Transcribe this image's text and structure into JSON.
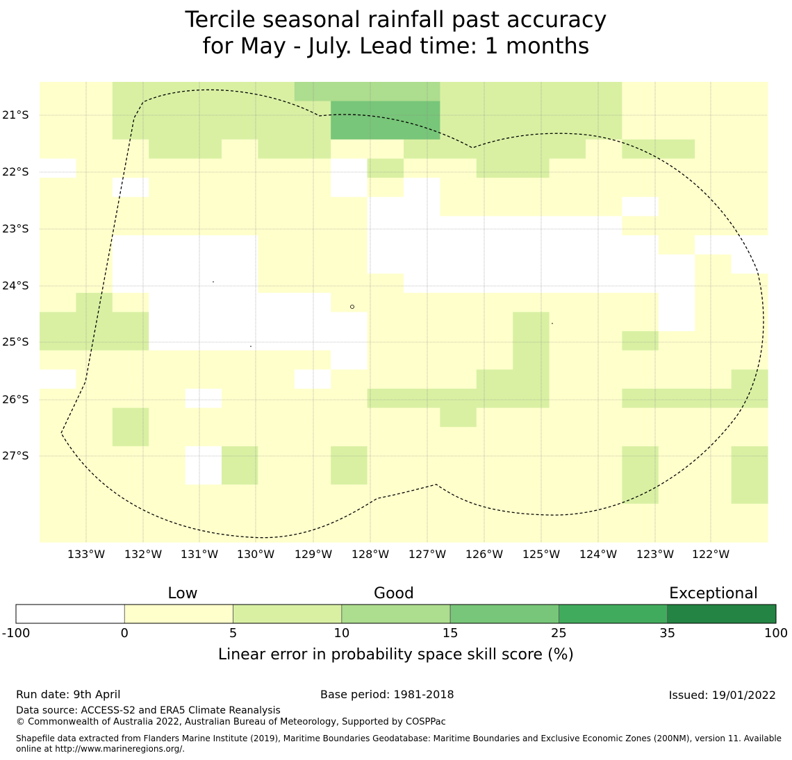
{
  "title_line1": "Tercile seasonal rainfall past accuracy",
  "title_line2": "for May - July. Lead time: 1 months",
  "map": {
    "lon_labels": [
      "133°W",
      "132°W",
      "131°W",
      "130°W",
      "129°W",
      "128°W",
      "127°W",
      "126°W",
      "125°W",
      "124°W",
      "123°W",
      "122°W"
    ],
    "lat_labels": [
      "21°S",
      "22°S",
      "23°S",
      "24°S",
      "25°S",
      "26°S",
      "27°S"
    ],
    "grid_rows": [
      "11222223333222221111",
      "11222222444222221111",
      "11222222444222221111",
      "11122122112222212211",
      "01111111021122111111",
      "11011111010111111111",
      "11111111100111110111",
      "11111111100000001111",
      "11000011100000000100",
      "11000011100000000010",
      "11000011110000000011",
      "12100000111111111011",
      "22200000011112111011",
      "22200000011112112111",
      "11111111011112111111",
      "01111110111122111112",
      "11110111122222112222",
      "11211111111211111111",
      "11211111111111111111",
      "11110211211111112112",
      "11110211211111112112",
      "11111111111111112112",
      "11111111111111111111",
      "11111111111111111111"
    ]
  },
  "colorbar": {
    "categories": [
      "Low",
      "Good",
      "Exceptional"
    ],
    "ticks": [
      "-100",
      "0",
      "5",
      "10",
      "15",
      "25",
      "35",
      "100"
    ],
    "colors": [
      "#ffffff",
      "#ffffcc",
      "#d9f0a3",
      "#addd8e",
      "#78c679",
      "#41ab5d",
      "#238443"
    ],
    "title": "Linear error in probability space skill score (%)"
  },
  "footer": {
    "run_date": "Run date: 9th April",
    "base_period": "Base period: 1981-2018",
    "issued": "Issued: 19/01/2022",
    "data_source": "Data source: ACCESS-S2 and ERA5 Climate Reanalysis",
    "copyright": "© Commonwealth of Australia 2022, Australian Bureau of Meteorology, Supported by COSPPac",
    "shapefile_note": "Shapefile data extracted from Flanders Marine Institute (2019), Maritime Boundaries Geodatabase: Maritime Boundaries and Exclusive Economic Zones (200NM), version 11. Available online at http://www.marineregions.org/."
  }
}
